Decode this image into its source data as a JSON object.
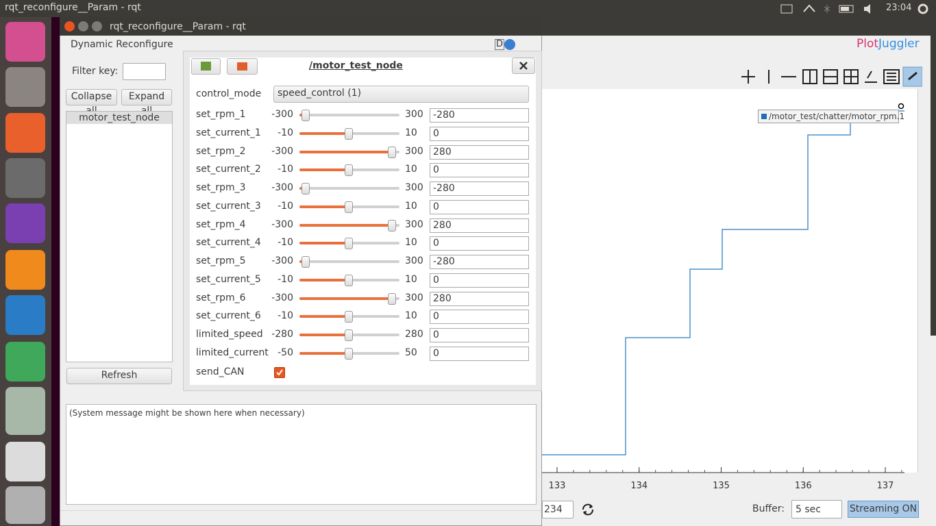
{
  "top_bar": {
    "title": "rqt_reconfigure__Param - rqt",
    "clock": "23:04"
  },
  "window": {
    "title": "rqt_reconfigure__Param - rqt",
    "plugin_title": "Dynamic Reconfigure",
    "d_icon": "D"
  },
  "sidebar": {
    "filter_label": "Filter key:",
    "collapse": "Collapse all",
    "expand": "Expand all",
    "tree": [
      "motor_test_node"
    ],
    "refresh": "Refresh"
  },
  "node_panel": {
    "title": "/motor_test_node",
    "control_mode": {
      "name": "control_mode",
      "value": "speed_control (1)"
    },
    "params": [
      {
        "name": "set_rpm_1",
        "min": -300,
        "max": 300,
        "value": -280
      },
      {
        "name": "set_current_1",
        "min": -10,
        "max": 10,
        "value": 0
      },
      {
        "name": "set_rpm_2",
        "min": -300,
        "max": 300,
        "value": 280
      },
      {
        "name": "set_current_2",
        "min": -10,
        "max": 10,
        "value": 0
      },
      {
        "name": "set_rpm_3",
        "min": -300,
        "max": 300,
        "value": -280
      },
      {
        "name": "set_current_3",
        "min": -10,
        "max": 10,
        "value": 0
      },
      {
        "name": "set_rpm_4",
        "min": -300,
        "max": 300,
        "value": 280
      },
      {
        "name": "set_current_4",
        "min": -10,
        "max": 10,
        "value": 0
      },
      {
        "name": "set_rpm_5",
        "min": -300,
        "max": 300,
        "value": -280
      },
      {
        "name": "set_current_5",
        "min": -10,
        "max": 10,
        "value": 0
      },
      {
        "name": "set_rpm_6",
        "min": -300,
        "max": 300,
        "value": 280
      },
      {
        "name": "set_current_6",
        "min": -10,
        "max": 10,
        "value": 0
      },
      {
        "name": "limited_speed",
        "min": -280,
        "max": 280,
        "value": 0
      },
      {
        "name": "limited_current",
        "min": -50,
        "max": 50,
        "value": 0
      }
    ],
    "send_can": "send_CAN"
  },
  "message": "(System message might be shown here when necessary)",
  "plotjuggler": {
    "logo_a": "Plot",
    "logo_b": "Juggler",
    "legend": "/motor_test/chatter/motor_rpm.1",
    "xticks": [
      133,
      134,
      135,
      136,
      137
    ],
    "partial_field": "234",
    "buffer_label": "Buffer:",
    "buffer_value": "5 sec",
    "streaming": "Streaming ON"
  }
}
